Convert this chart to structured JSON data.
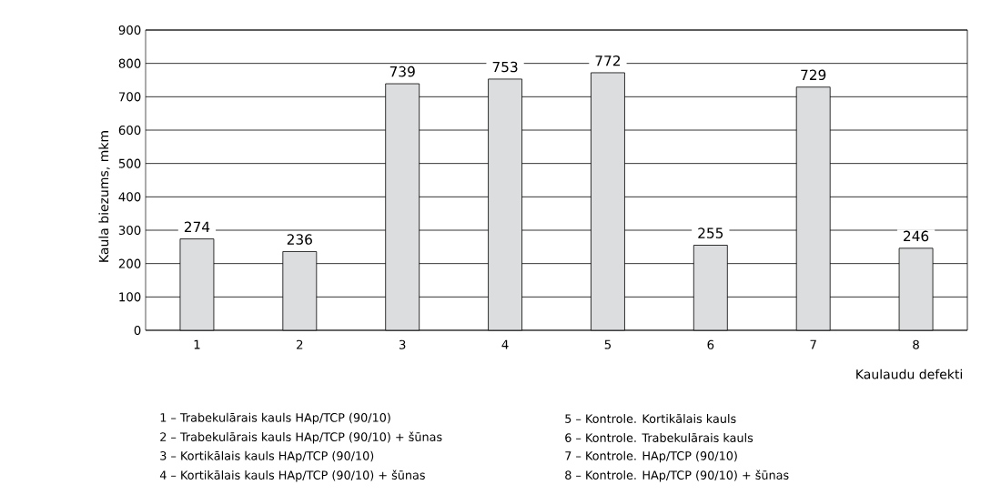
{
  "chart_data": {
    "type": "bar",
    "categories": [
      "1",
      "2",
      "3",
      "4",
      "5",
      "6",
      "7",
      "8"
    ],
    "values": [
      274,
      236,
      739,
      753,
      772,
      255,
      729,
      246
    ],
    "color": "#dcdddf",
    "ylim": [
      0,
      900
    ],
    "yticks": [
      0,
      100,
      200,
      300,
      400,
      500,
      600,
      700,
      800,
      900
    ],
    "grid": "y",
    "data_labels": true,
    "xlabel": "Kaulaudu defekti",
    "ylabel": "Kaula biezums, mkm",
    "annotations": [
      "1 – Trabekulārais kauls HAp/TCP (90/10)",
      "2 – Trabekulārais kauls HAp/TCP (90/10) + šūnas",
      "3 – Kortikālais kauls HAp/TCP (90/10)",
      "4 – Kortikālais kauls HAp/TCP (90/10) + šūnas",
      "5 – Kontrole. Kortikālais kauls",
      "6 – Kontrole. Trabekulārais kauls",
      "7 – Kontrole. HAp/TCP (90/10)",
      "8 – Kontrole. HAp/TCP (90/10) + šūnas"
    ]
  }
}
